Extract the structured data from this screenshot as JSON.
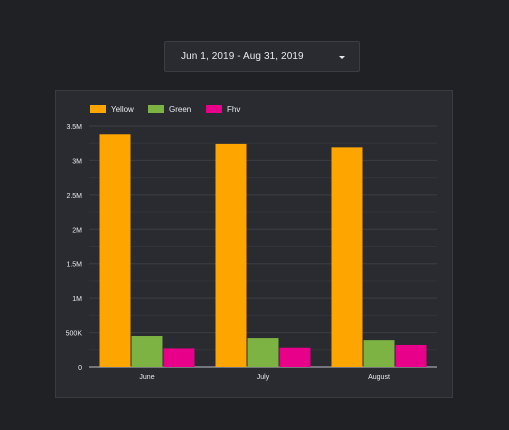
{
  "date_range": {
    "label": "Jun 1, 2019 - Aug 31, 2019",
    "dropdown_icon": "caret-down-icon"
  },
  "chart_data": {
    "type": "bar",
    "categories": [
      "June",
      "July",
      "August"
    ],
    "series": [
      {
        "name": "Yellow",
        "color": "#FFA500",
        "values": [
          3380000,
          3240000,
          3190000
        ]
      },
      {
        "name": "Green",
        "color": "#7CB342",
        "values": [
          450000,
          420000,
          390000
        ]
      },
      {
        "name": "Fhv",
        "color": "#E8008A",
        "values": [
          270000,
          280000,
          320000
        ]
      }
    ],
    "ylim": [
      0,
      3500000
    ],
    "yticks": [
      0,
      500000,
      1000000,
      1500000,
      2000000,
      2500000,
      3000000,
      3500000
    ],
    "ytick_labels": [
      "0",
      "500K",
      "1M",
      "1.5M",
      "2M",
      "2.5M",
      "3M",
      "3.5M"
    ],
    "grid": true,
    "legend_position": "top-left",
    "title": "",
    "xlabel": "",
    "ylabel": ""
  }
}
